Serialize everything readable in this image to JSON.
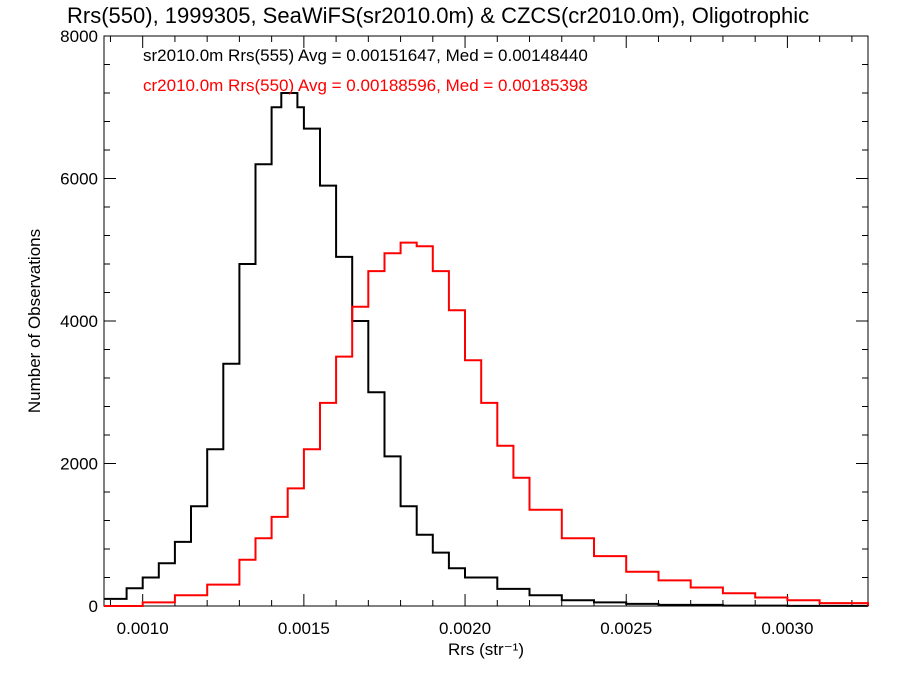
{
  "chart_data": {
    "type": "histogram",
    "title": "Rrs(550), 1999305, SeaWiFS(sr2010.0m) & CZCS(cr2010.0m), Oligotrophic",
    "xlabel": "Rrs (str⁻¹)",
    "ylabel": "Number of Observations",
    "xlim": [
      0.00088,
      0.00325
    ],
    "ylim": [
      0,
      8000
    ],
    "xticks": [
      0.001,
      0.0015,
      0.002,
      0.0025,
      0.003
    ],
    "xtick_labels": [
      "0.0010",
      "0.0015",
      "0.0020",
      "0.0025",
      "0.0030"
    ],
    "yticks": [
      0,
      2000,
      4000,
      6000,
      8000
    ],
    "ytick_labels": [
      "0",
      "2000",
      "4000",
      "6000",
      "8000"
    ],
    "grid": false,
    "legend": "top-left",
    "series": [
      {
        "name": "sr2010.0m Rrs(555) Avg = 0.00151647, Med = 0.00148440",
        "color": "#000000",
        "x": [
          0.00088,
          0.00095,
          0.001,
          0.00105,
          0.0011,
          0.00115,
          0.0012,
          0.00125,
          0.0013,
          0.00135,
          0.0014,
          0.00143,
          0.00145,
          0.00148,
          0.0015,
          0.00155,
          0.0016,
          0.00165,
          0.0017,
          0.00175,
          0.0018,
          0.00185,
          0.0019,
          0.00195,
          0.002,
          0.0021,
          0.0022,
          0.0023,
          0.0024,
          0.0025,
          0.0026,
          0.0028,
          0.003,
          0.00325
        ],
        "values": [
          100,
          250,
          400,
          600,
          900,
          1400,
          2200,
          3400,
          4800,
          6200,
          7000,
          7200,
          7200,
          7000,
          6700,
          5900,
          4900,
          4000,
          3000,
          2100,
          1400,
          1000,
          750,
          530,
          400,
          240,
          150,
          80,
          50,
          30,
          15,
          5,
          2,
          0
        ]
      },
      {
        "name": "cr2010.0m Rrs(550) Avg = 0.00188596, Med = 0.00185398",
        "color": "#ff0000",
        "x": [
          0.00088,
          0.001,
          0.0011,
          0.0012,
          0.0013,
          0.00135,
          0.0014,
          0.00145,
          0.0015,
          0.00155,
          0.0016,
          0.00165,
          0.0017,
          0.00175,
          0.0018,
          0.00185,
          0.0019,
          0.00195,
          0.002,
          0.00205,
          0.0021,
          0.00215,
          0.0022,
          0.0023,
          0.0024,
          0.0025,
          0.0026,
          0.0027,
          0.0028,
          0.0029,
          0.003,
          0.0031,
          0.00325
        ],
        "values": [
          0,
          50,
          150,
          300,
          650,
          950,
          1250,
          1650,
          2200,
          2850,
          3500,
          4200,
          4700,
          4950,
          5100,
          5050,
          4700,
          4150,
          3450,
          2850,
          2250,
          1800,
          1350,
          950,
          700,
          480,
          360,
          260,
          180,
          120,
          80,
          40,
          5
        ]
      }
    ]
  }
}
